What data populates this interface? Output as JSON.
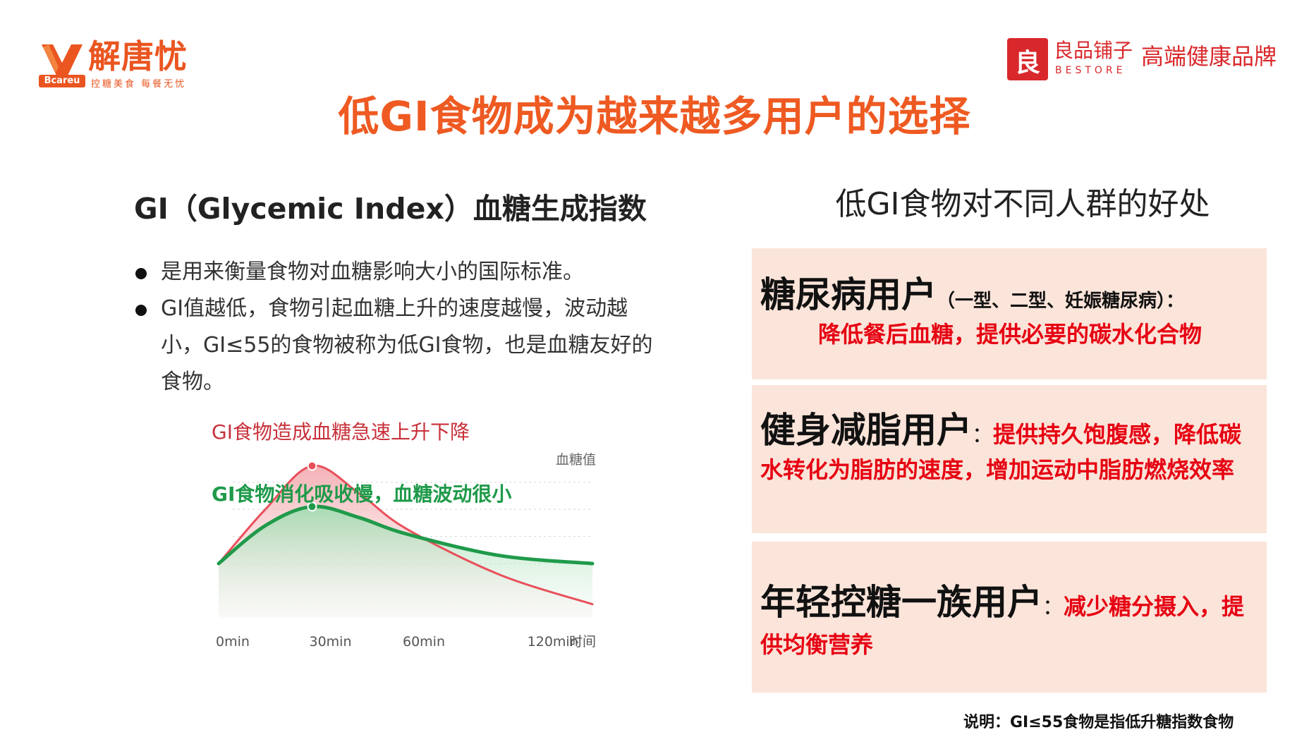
{
  "header": {
    "left_logo": {
      "name": "解唐忧",
      "badge": "Bcareu",
      "slogan": "控糖美食 每餐无忧",
      "icon": "bcareu-logo-icon",
      "color": "#ea5520"
    },
    "right_logo": {
      "icon_glyph": "良",
      "name_cn": "良品铺子",
      "name_en": "BESTORE",
      "tagline": "高端健康品牌",
      "color": "#d9282b"
    }
  },
  "title": "低GI食物成为越来越多用户的选择",
  "left": {
    "heading": "GI（Glycemic Index）血糖生成指数",
    "bullets": [
      "是用来衡量食物对血糖影响大小的国际标准。",
      "GI值越低，食物引起血糖上升的速度越慢，波动越小，GI≤55的食物被称为低GI食物，也是血糖友好的食物。"
    ]
  },
  "chart_data": {
    "type": "area",
    "annotations": [
      "高GI食物造成血糖急速上升下降",
      "低GI食物消化吸收慢，血糖波动很小"
    ],
    "ylabel": "血糖值",
    "xlabel": "时间",
    "x_ticks": [
      "0min",
      "30min",
      "60min",
      "120min"
    ],
    "series": [
      {
        "color": "#e8505b",
        "points": [
          [
            0,
            1.0
          ],
          [
            15,
            3.0
          ],
          [
            30,
            4.6
          ],
          [
            45,
            3.6
          ],
          [
            60,
            2.3
          ],
          [
            90,
            0.6
          ],
          [
            120,
            -0.5
          ]
        ]
      },
      {
        "color": "#1f9a4a",
        "points": [
          [
            0,
            1.0
          ],
          [
            15,
            2.4
          ],
          [
            30,
            3.1
          ],
          [
            45,
            2.7
          ],
          [
            60,
            2.1
          ],
          [
            90,
            1.3
          ],
          [
            120,
            1.0
          ]
        ]
      }
    ],
    "xlim": [
      0,
      120
    ],
    "ylim": [
      -1,
      5.5
    ],
    "grid": true
  },
  "right": {
    "heading": "低GI食物对不同人群的好处",
    "cards": [
      {
        "title": "糖尿病用户",
        "paren": "（一型、二型、妊娠糖尿病）：",
        "benefit": "降低餐后血糖，提供必要的碳水化合物"
      },
      {
        "title": "健身减脂用户",
        "colon": "：",
        "benefit": "提供持久饱腹感，降低碳水转化为脂肪的速度，增加运动中脂肪燃烧效率"
      },
      {
        "title": "年轻控糖一族用户",
        "colon": "：",
        "benefit": "减少糖分摄入，提供均衡营养"
      }
    ]
  },
  "footnote": "说明：GI≤55食物是指低升糖指数食物"
}
